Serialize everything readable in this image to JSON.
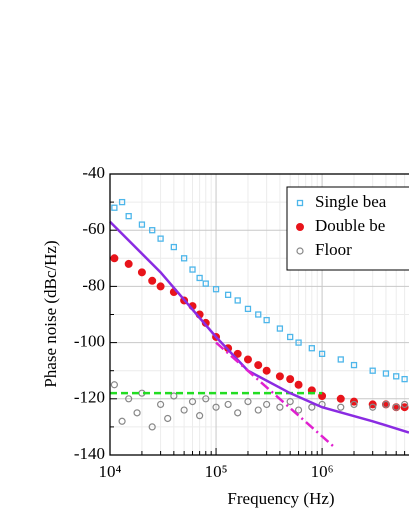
{
  "chart_data": {
    "type": "scatter",
    "xlabel": "Frequency (Hz)",
    "ylabel": "Phase noise (dBc/Hz)",
    "xscale": "log",
    "xlim": [
      10000,
      6600000
    ],
    "xticks": [
      {
        "value": 10000,
        "label": "10⁴"
      },
      {
        "value": 100000,
        "label": "10⁵"
      },
      {
        "value": 1000000,
        "label": "10⁶"
      }
    ],
    "xminorticks": [
      20000,
      30000,
      40000,
      50000,
      60000,
      70000,
      80000,
      90000,
      200000,
      300000,
      400000,
      500000,
      600000,
      700000,
      800000,
      900000,
      2000000,
      3000000,
      4000000,
      5000000,
      6000000
    ],
    "ylim": [
      -140,
      -40
    ],
    "yticks": [
      -140,
      -120,
      -100,
      -80,
      -60,
      -40
    ],
    "yminorticks": [
      -130,
      -110,
      -90,
      -70,
      -50
    ],
    "grid": true,
    "legend": "top-right",
    "series": [
      {
        "name": "Single bea",
        "color": "#4db6ea",
        "marker": "square",
        "x": [
          11000,
          13000,
          15000,
          20000,
          25000,
          30000,
          40000,
          50000,
          60000,
          70000,
          80000,
          100000,
          130000,
          160000,
          200000,
          250000,
          300000,
          400000,
          500000,
          600000,
          800000,
          1000000,
          1500000,
          2000000,
          3000000,
          4000000,
          5000000,
          6000000
        ],
        "values": [
          -52,
          -50,
          -55,
          -58,
          -60,
          -63,
          -66,
          -70,
          -74,
          -77,
          -79,
          -81,
          -83,
          -85,
          -88,
          -90,
          -92,
          -95,
          -98,
          -100,
          -102,
          -104,
          -106,
          -108,
          -110,
          -111,
          -112,
          -113
        ]
      },
      {
        "name": "Double be",
        "color": "#e8141b",
        "marker": "circle",
        "x": [
          11000,
          15000,
          20000,
          25000,
          30000,
          40000,
          50000,
          60000,
          70000,
          80000,
          100000,
          130000,
          160000,
          200000,
          250000,
          300000,
          400000,
          500000,
          600000,
          800000,
          1000000,
          1500000,
          2000000,
          3000000,
          4000000,
          5000000,
          6000000
        ],
        "values": [
          -70,
          -72,
          -75,
          -78,
          -80,
          -82,
          -85,
          -87,
          -90,
          -93,
          -98,
          -102,
          -104,
          -106,
          -108,
          -110,
          -112,
          -113,
          -115,
          -117,
          -119,
          -120,
          -121,
          -122,
          -122,
          -123,
          -123
        ]
      },
      {
        "name": "Floor",
        "color": "#888888",
        "marker": "open-circle",
        "x": [
          11000,
          13000,
          15000,
          18000,
          20000,
          25000,
          30000,
          35000,
          40000,
          50000,
          60000,
          70000,
          80000,
          100000,
          130000,
          160000,
          200000,
          250000,
          300000,
          400000,
          500000,
          600000,
          800000,
          1000000,
          1500000,
          2000000,
          3000000,
          4000000,
          5000000,
          6000000
        ],
        "values": [
          -115,
          -128,
          -120,
          -125,
          -118,
          -130,
          -122,
          -127,
          -119,
          -124,
          -121,
          -126,
          -120,
          -123,
          -122,
          -125,
          -121,
          -124,
          -122,
          -123,
          -121,
          -124,
          -123,
          -122,
          -123,
          -122,
          -123,
          -122,
          -123,
          -122
        ]
      },
      {
        "color": "#22dd22",
        "line": "dashed",
        "x": [
          10000,
          1000000
        ],
        "values": [
          -118,
          -118
        ]
      },
      {
        "color": "#8a2be2",
        "line": "solid",
        "x": [
          10000,
          30000,
          100000,
          200000,
          500000,
          1000000,
          3000000,
          6600000
        ],
        "values": [
          -57,
          -75,
          -98,
          -110,
          -118,
          -123,
          -128,
          -132
        ]
      },
      {
        "color": "#e020d0",
        "line": "dash-dot",
        "x": [
          100000,
          1330000
        ],
        "values": [
          -100,
          -137.5
        ]
      }
    ]
  }
}
